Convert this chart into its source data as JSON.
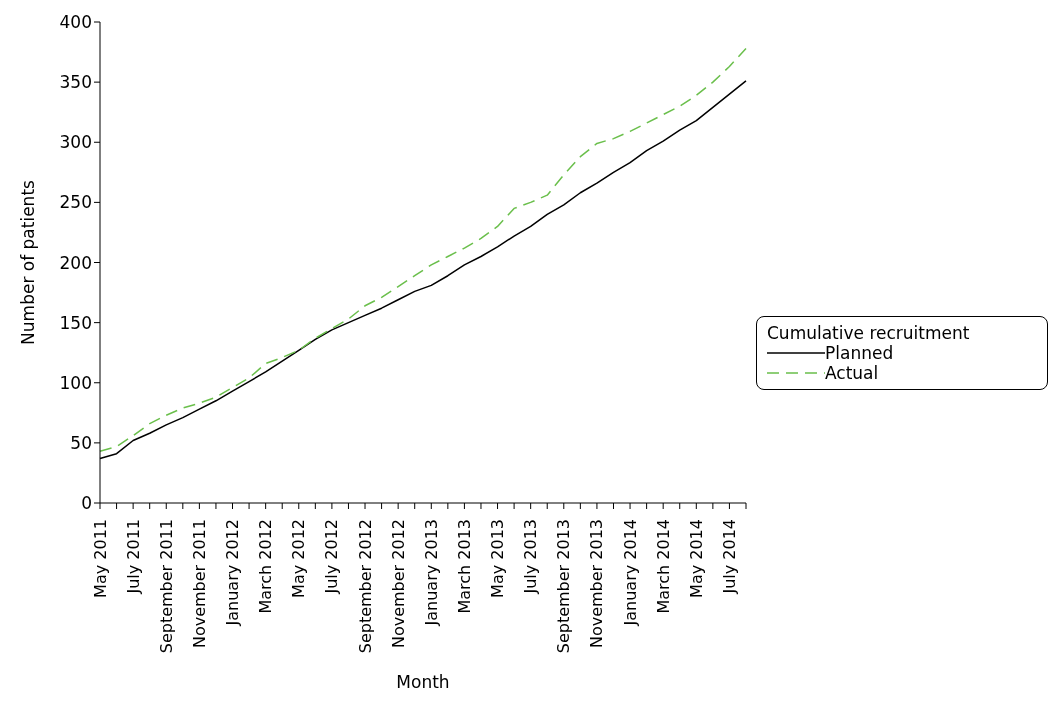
{
  "chart_data": {
    "type": "line",
    "xlabel": "Month",
    "ylabel": "Number of patients",
    "legend_title": "Cumulative recruitment",
    "legend": "right",
    "marker": "none",
    "grid": false,
    "categories": [
      "May 2011",
      null,
      "July 2011",
      null,
      "September 2011",
      null,
      "November 2011",
      null,
      "January 2012",
      null,
      "March 2012",
      null,
      "May 2012",
      null,
      "July 2012",
      null,
      "September 2012",
      null,
      "November 2012",
      null,
      "January 2013",
      null,
      "March 2013",
      null,
      "May 2013",
      null,
      "July 2013",
      null,
      "September 2013",
      null,
      "November 2013",
      null,
      "January 2014",
      null,
      "March 2014",
      null,
      "May 2014",
      null,
      "July 2014",
      null
    ],
    "ylim": [
      0,
      400
    ],
    "yticks": [
      0,
      50,
      100,
      150,
      200,
      250,
      300,
      350,
      400
    ],
    "series": [
      {
        "name": "Planned",
        "color": "#000000",
        "line_style": "solid",
        "values": [
          37,
          41,
          52,
          58,
          65,
          71,
          78,
          85,
          93,
          101,
          109,
          118,
          127,
          136,
          144,
          150,
          156,
          162,
          169,
          176,
          181,
          189,
          198,
          205,
          213,
          222,
          230,
          240,
          248,
          258,
          266,
          275,
          283,
          293,
          301,
          310,
          318,
          329,
          340,
          351
        ]
      },
      {
        "name": "Actual",
        "color": "#6abf4b",
        "line_style": "dashed",
        "values": [
          43,
          47,
          56,
          66,
          73,
          79,
          83,
          88,
          96,
          104,
          116,
          121,
          127,
          137,
          145,
          153,
          164,
          171,
          180,
          189,
          198,
          205,
          212,
          220,
          230,
          245,
          250,
          256,
          273,
          288,
          299,
          303,
          309,
          316,
          323,
          330,
          339,
          350,
          363,
          378
        ]
      }
    ]
  }
}
